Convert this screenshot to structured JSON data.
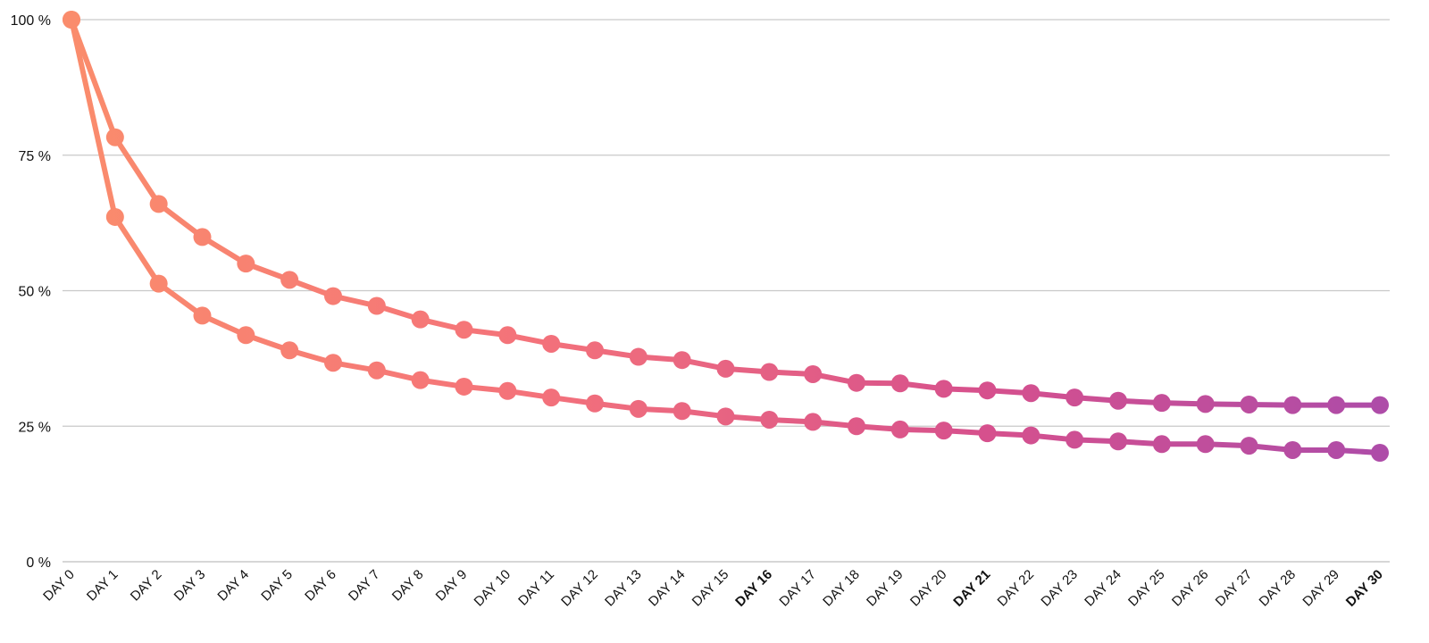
{
  "chart_data": {
    "type": "line",
    "title": "",
    "xlabel": "",
    "ylabel": "",
    "categories": [
      "DAY 0",
      "DAY 1",
      "DAY 2",
      "DAY 3",
      "DAY 4",
      "DAY 5",
      "DAY 6",
      "DAY 7",
      "DAY 8",
      "DAY 9",
      "DAY 10",
      "DAY 11",
      "DAY 12",
      "DAY 13",
      "DAY 14",
      "DAY 15",
      "DAY 16",
      "DAY 17",
      "DAY 18",
      "DAY 19",
      "DAY 20",
      "DAY 21",
      "DAY 22",
      "DAY 23",
      "DAY 24",
      "DAY 25",
      "DAY 26",
      "DAY 27",
      "DAY 28",
      "DAY 29",
      "DAY 30"
    ],
    "emphasized_categories": [
      "DAY 16",
      "DAY 21",
      "DAY 30"
    ],
    "y_ticks": [
      "0 %",
      "25 %",
      "50 %",
      "75 %",
      "100 %"
    ],
    "y_tick_values": [
      0,
      25,
      50,
      75,
      100
    ],
    "ylim": [
      0,
      100
    ],
    "grid": true,
    "legend": "none",
    "series": [
      {
        "values": [
          100,
          78.3,
          66,
          59.9,
          55,
          52,
          49,
          47.2,
          44.7,
          42.8,
          41.8,
          40.2,
          39,
          37.8,
          37.2,
          35.6,
          35,
          34.6,
          33,
          32.9,
          31.9,
          31.6,
          31.1,
          30.3,
          29.7,
          29.3,
          29.1,
          29,
          28.9,
          28.9,
          28.9
        ]
      },
      {
        "values": [
          100,
          63.6,
          51.3,
          45.4,
          41.8,
          39,
          36.7,
          35.3,
          33.5,
          32.3,
          31.5,
          30.3,
          29.2,
          28.2,
          27.8,
          26.8,
          26.2,
          25.8,
          25,
          24.4,
          24.2,
          23.7,
          23.3,
          22.5,
          22.2,
          21.7,
          21.7,
          21.4,
          20.6,
          20.6,
          20.1
        ]
      }
    ],
    "gradient_colors": [
      "#FA8C6C",
      "#F4727A",
      "#D6508D",
      "#AE4CA8"
    ]
  }
}
